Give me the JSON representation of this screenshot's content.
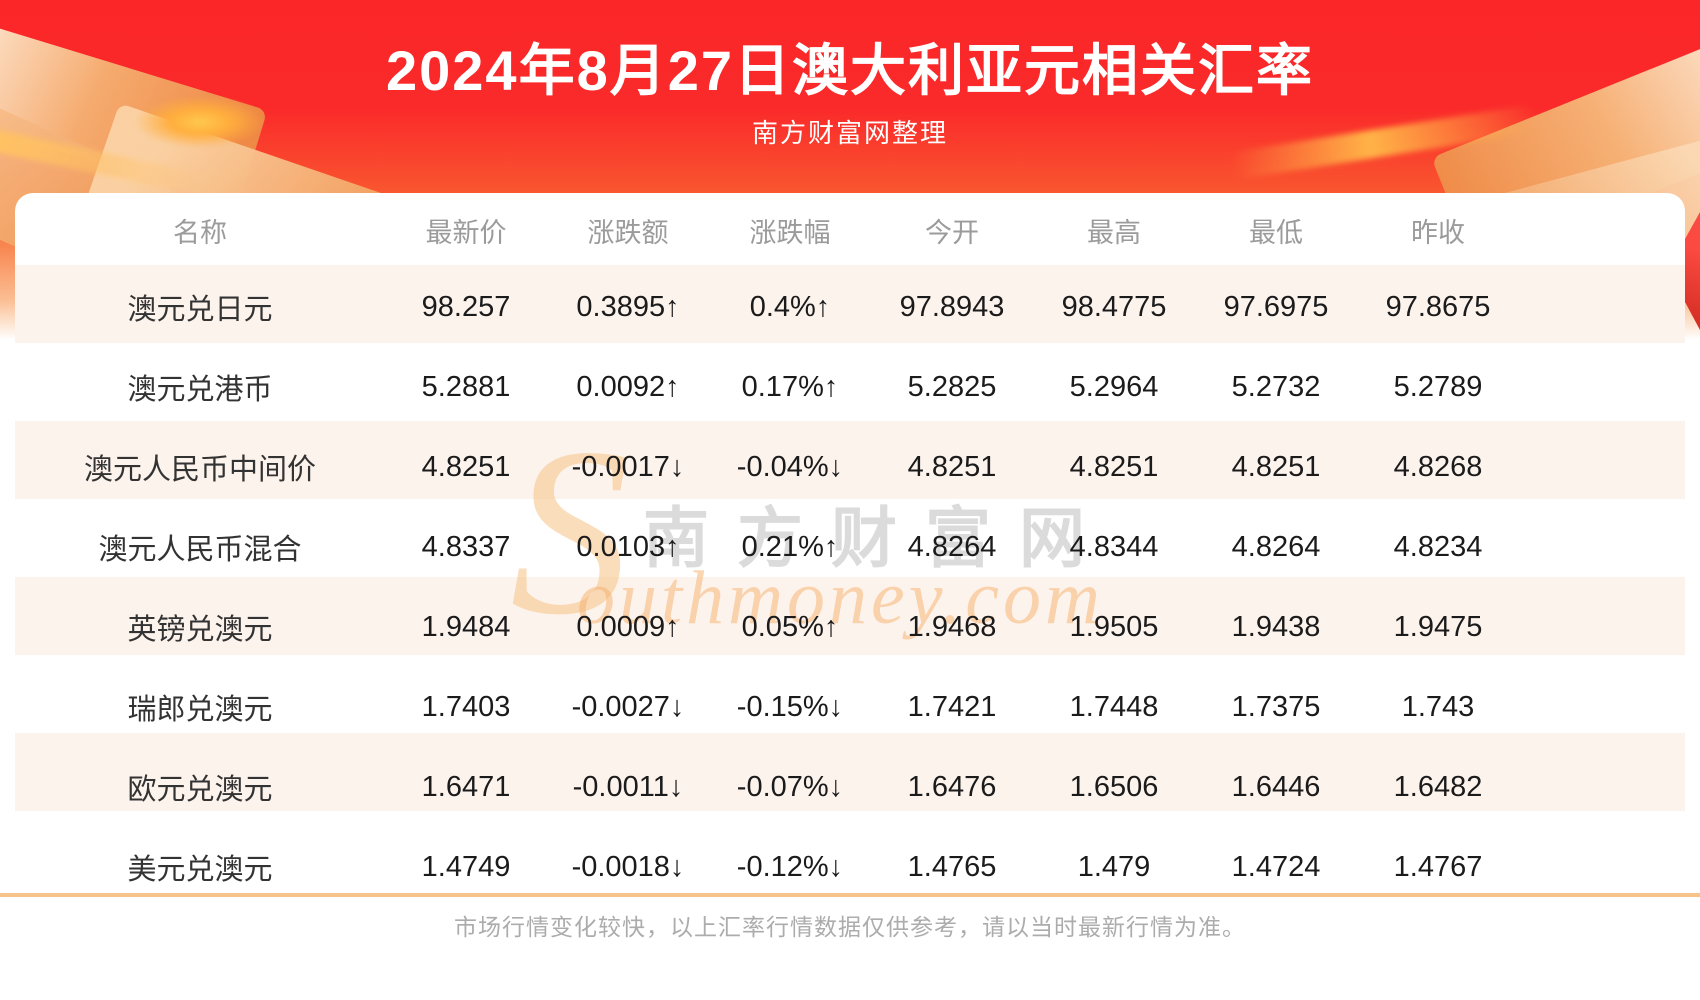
{
  "page": {
    "title": "2024年8月27日澳大利亚元相关汇率",
    "subtitle": "南方财富网整理",
    "footer_note": "市场行情变化较快，以上汇率行情数据仅供参考，请以当时最新行情为准。"
  },
  "watermark": {
    "initial": "S",
    "cjk": "南方财富网",
    "latin": "outhmoney.com"
  },
  "colors": {
    "banner_red_top": "#fb2628",
    "banner_orange_bottom": "#f8854f",
    "up_red": "#f50000",
    "down_green": "#0b8e0b",
    "row_stripe_cream": "#fdf3ed",
    "header_text_gray": "#9b9b9b",
    "divider_tan": "#f6c38b",
    "footnote_gray": "#acacac"
  },
  "chart_data": {
    "type": "table",
    "title": "2024年8月27日澳大利亚元相关汇率",
    "columns": [
      "名称",
      "最新价",
      "涨跌额",
      "涨跌幅",
      "今开",
      "最高",
      "最低",
      "昨收"
    ],
    "rows": [
      {
        "name": "澳元兑日元",
        "latest": "98.257",
        "change": "0.3895↑",
        "change_pct": "0.4%↑",
        "open": "97.8943",
        "high": "98.4775",
        "low": "97.6975",
        "prev_close": "97.8675",
        "trend": "up"
      },
      {
        "name": "澳元兑港币",
        "latest": "5.2881",
        "change": "0.0092↑",
        "change_pct": "0.17%↑",
        "open": "5.2825",
        "high": "5.2964",
        "low": "5.2732",
        "prev_close": "5.2789",
        "trend": "up"
      },
      {
        "name": "澳元人民币中间价",
        "latest": "4.8251",
        "change": "-0.0017↓",
        "change_pct": "-0.04%↓",
        "open": "4.8251",
        "high": "4.8251",
        "low": "4.8251",
        "prev_close": "4.8268",
        "trend": "down"
      },
      {
        "name": "澳元人民币混合",
        "latest": "4.8337",
        "change": "0.0103↑",
        "change_pct": "0.21%↑",
        "open": "4.8264",
        "high": "4.8344",
        "low": "4.8264",
        "prev_close": "4.8234",
        "trend": "up"
      },
      {
        "name": "英镑兑澳元",
        "latest": "1.9484",
        "change": "0.0009↑",
        "change_pct": "0.05%↑",
        "open": "1.9468",
        "high": "1.9505",
        "low": "1.9438",
        "prev_close": "1.9475",
        "trend": "up"
      },
      {
        "name": "瑞郎兑澳元",
        "latest": "1.7403",
        "change": "-0.0027↓",
        "change_pct": "-0.15%↓",
        "open": "1.7421",
        "high": "1.7448",
        "low": "1.7375",
        "prev_close": "1.743",
        "trend": "down"
      },
      {
        "name": "欧元兑澳元",
        "latest": "1.6471",
        "change": "-0.0011↓",
        "change_pct": "-0.07%↓",
        "open": "1.6476",
        "high": "1.6506",
        "low": "1.6446",
        "prev_close": "1.6482",
        "trend": "down"
      },
      {
        "name": "美元兑澳元",
        "latest": "1.4749",
        "change": "-0.0018↓",
        "change_pct": "-0.12%↓",
        "open": "1.4765",
        "high": "1.479",
        "low": "1.4724",
        "prev_close": "1.4767",
        "trend": "down"
      }
    ]
  }
}
